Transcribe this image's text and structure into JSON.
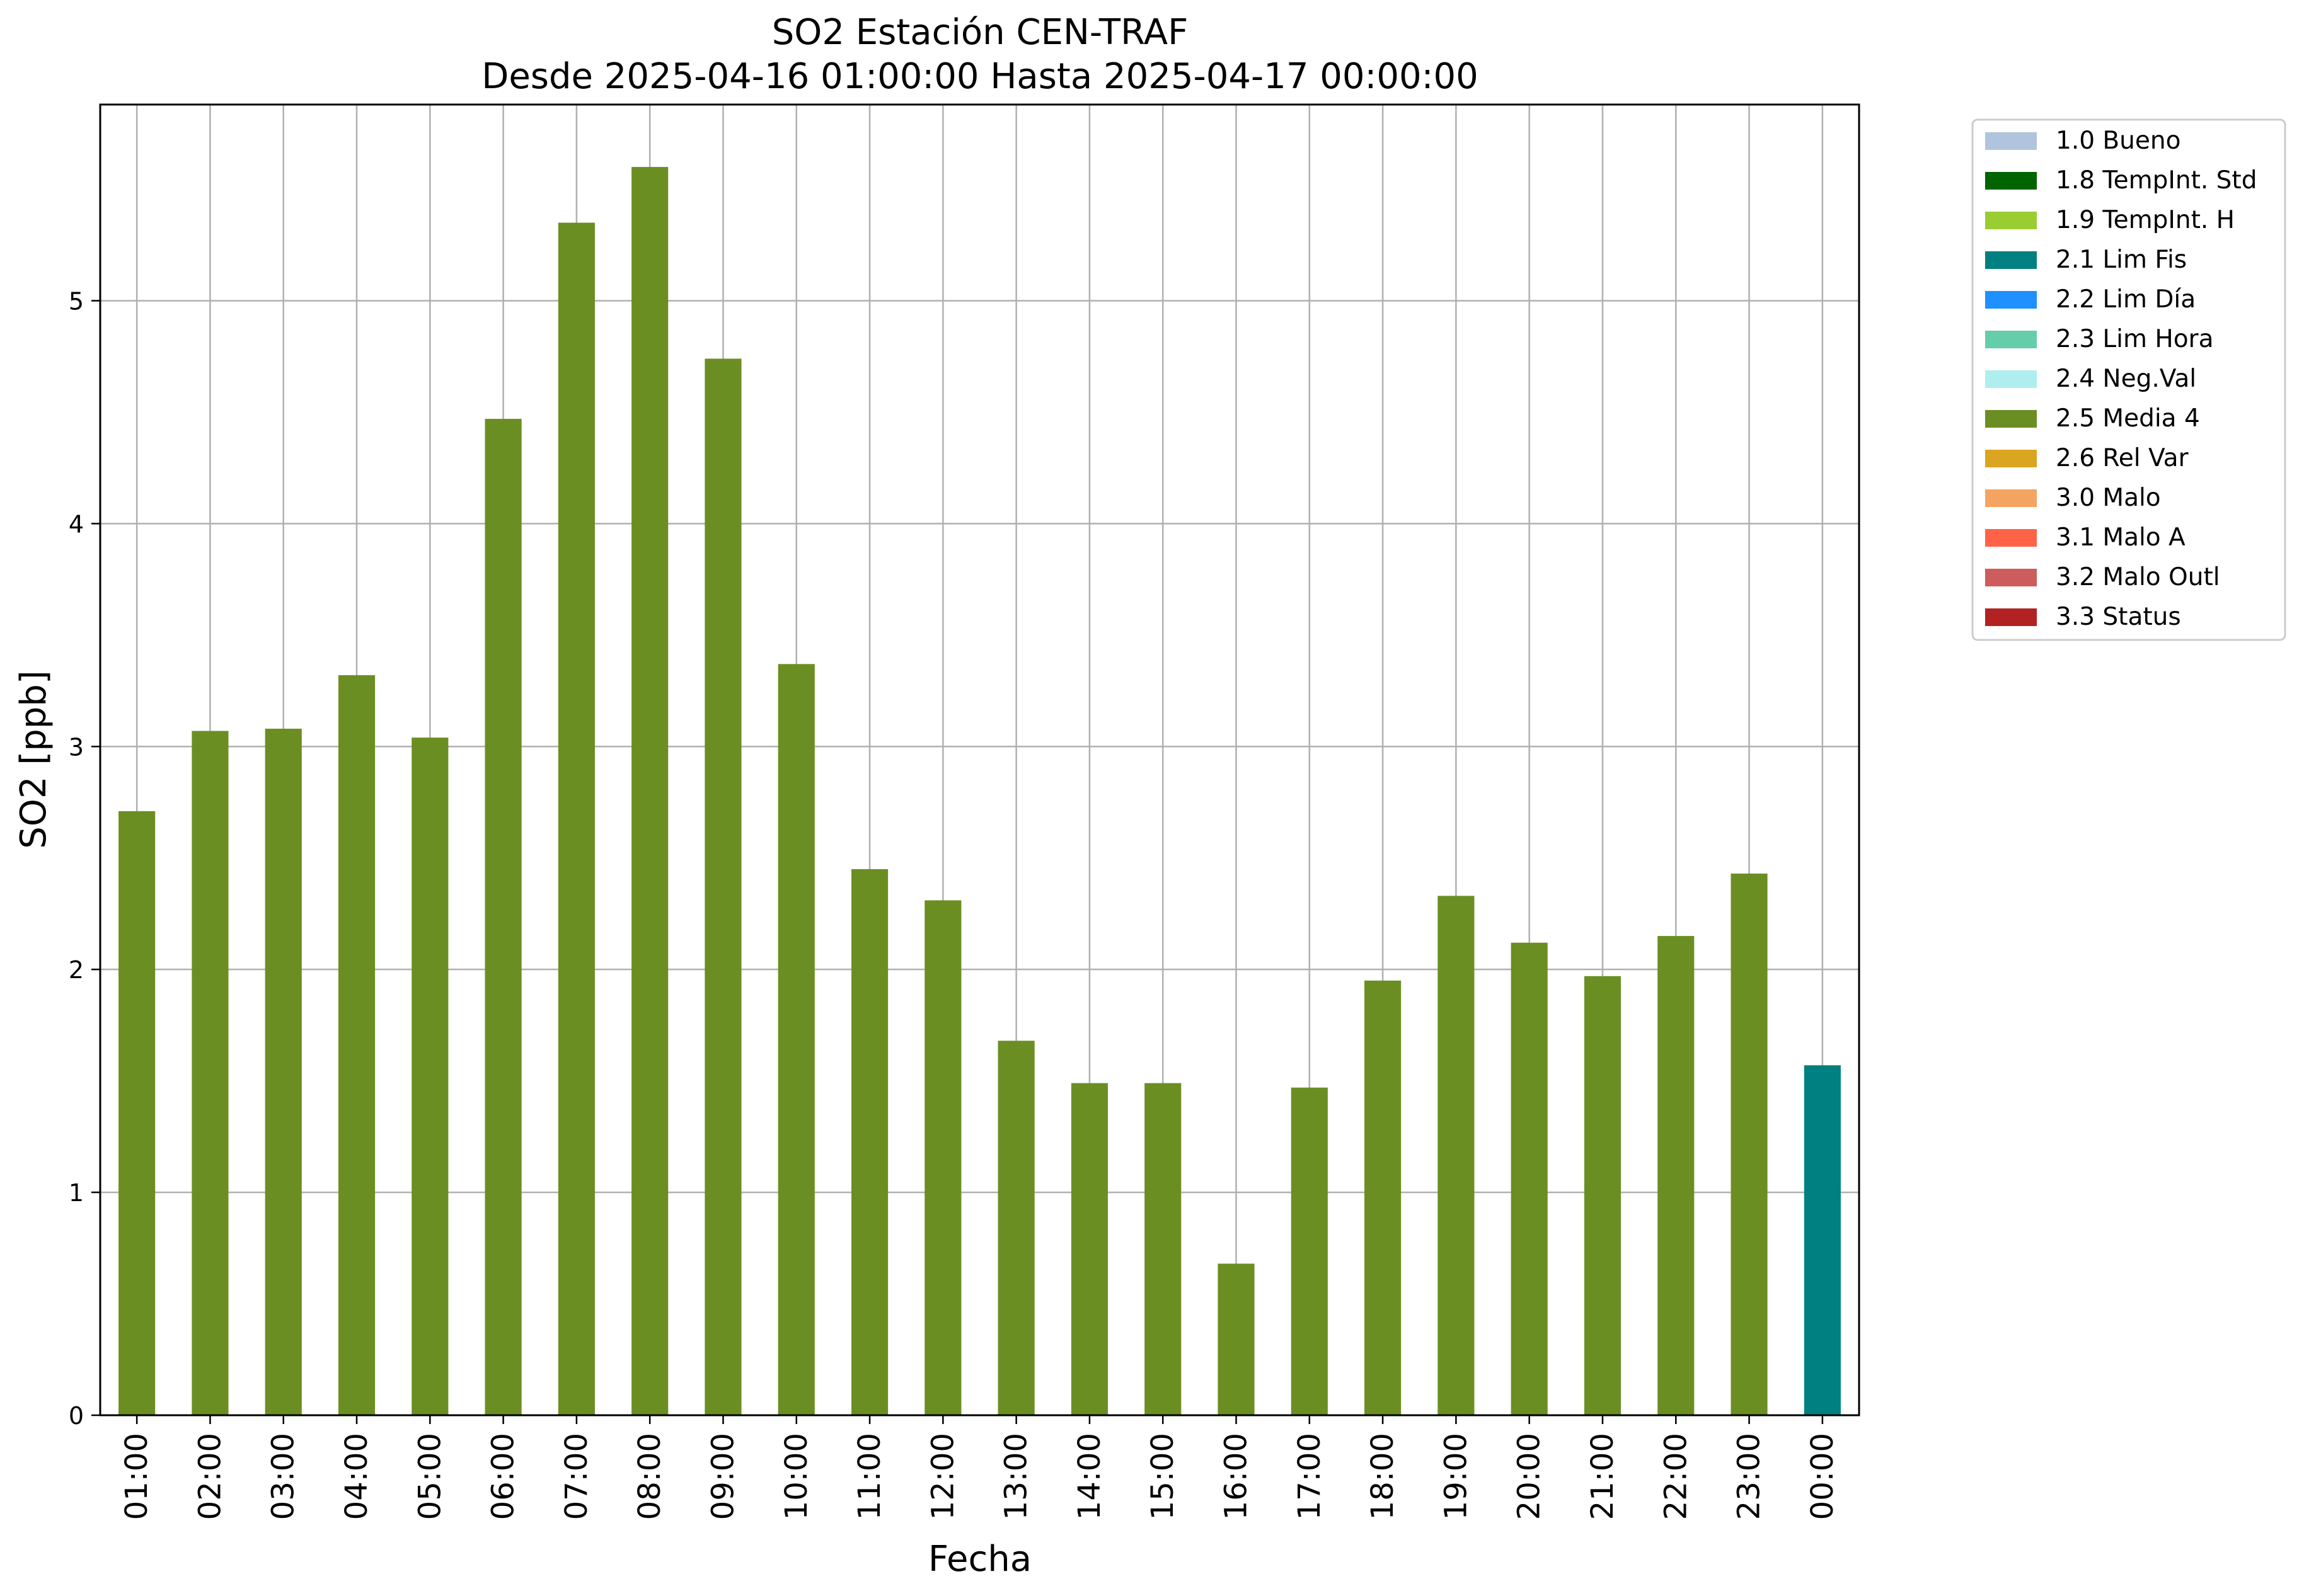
{
  "chart_data": {
    "type": "bar",
    "title": "SO2 Estación CEN-TRAF",
    "subtitle": "Desde 2025-04-16 01:00:00 Hasta 2025-04-17 00:00:00",
    "xlabel": "Fecha",
    "ylabel": "SO2 [ppb]",
    "ylim": [
      0,
      5.88
    ],
    "yticks": [
      0,
      1,
      2,
      3,
      4,
      5
    ],
    "grid": true,
    "legend_position": "outside-right-top",
    "categories": [
      "01:00",
      "02:00",
      "03:00",
      "04:00",
      "05:00",
      "06:00",
      "07:00",
      "08:00",
      "09:00",
      "10:00",
      "11:00",
      "12:00",
      "13:00",
      "14:00",
      "15:00",
      "16:00",
      "17:00",
      "18:00",
      "19:00",
      "20:00",
      "21:00",
      "22:00",
      "23:00",
      "00:00"
    ],
    "values": [
      2.71,
      3.07,
      3.08,
      3.32,
      3.04,
      4.47,
      5.35,
      5.6,
      4.74,
      3.37,
      2.45,
      2.31,
      1.68,
      1.49,
      1.49,
      0.68,
      1.47,
      1.95,
      2.33,
      2.12,
      1.97,
      2.15,
      2.43,
      1.57
    ],
    "value_flags": [
      "2.5 Media 4",
      "2.5 Media 4",
      "2.5 Media 4",
      "2.5 Media 4",
      "2.5 Media 4",
      "2.5 Media 4",
      "2.5 Media 4",
      "2.5 Media 4",
      "2.5 Media 4",
      "2.5 Media 4",
      "2.5 Media 4",
      "2.5 Media 4",
      "2.5 Media 4",
      "2.5 Media 4",
      "2.5 Media 4",
      "2.5 Media 4",
      "2.5 Media 4",
      "2.5 Media 4",
      "2.5 Media 4",
      "2.5 Media 4",
      "2.5 Media 4",
      "2.5 Media 4",
      "2.5 Media 4",
      "2.1 Lim Fis"
    ],
    "legend": [
      {
        "label": "1.0 Bueno",
        "color": "#b0c4de"
      },
      {
        "label": "1.8 TempInt. Std",
        "color": "#006400"
      },
      {
        "label": "1.9 TempInt. H",
        "color": "#9acd32"
      },
      {
        "label": "2.1 Lim Fis",
        "color": "#008080"
      },
      {
        "label": "2.2 Lim Día",
        "color": "#1e90ff"
      },
      {
        "label": "2.3 Lim Hora",
        "color": "#66cdaa"
      },
      {
        "label": "2.4 Neg.Val",
        "color": "#afeeee"
      },
      {
        "label": "2.5 Media 4",
        "color": "#6b8e23"
      },
      {
        "label": "2.6 Rel Var",
        "color": "#daa520"
      },
      {
        "label": "3.0 Malo",
        "color": "#f4a460"
      },
      {
        "label": "3.1 Malo A",
        "color": "#ff6347"
      },
      {
        "label": "3.2 Malo Outl",
        "color": "#cd5c5c"
      },
      {
        "label": "3.3 Status",
        "color": "#b22222"
      }
    ]
  }
}
